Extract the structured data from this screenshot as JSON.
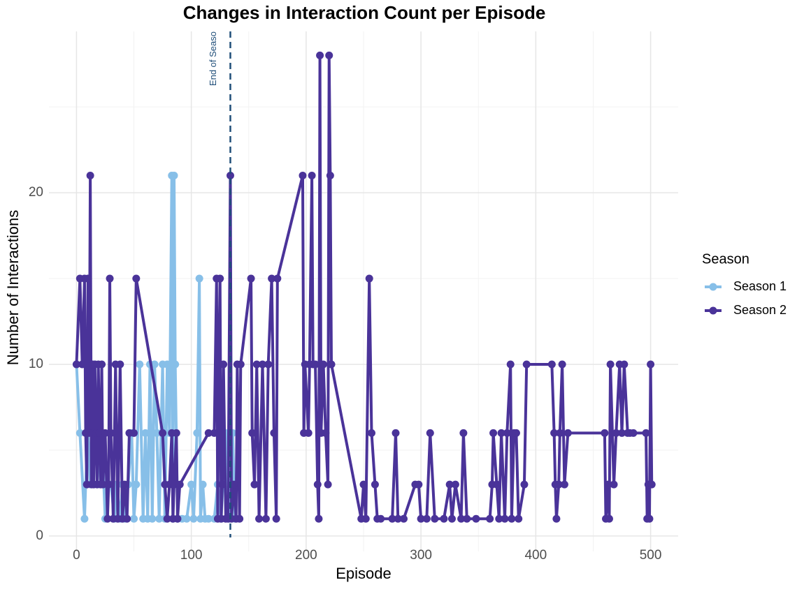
{
  "chart_data": {
    "type": "line",
    "title": "Changes in Interaction Count per Episode",
    "x_label": "Episode",
    "y_label": "Number of Interactions",
    "legend_title": "Season",
    "legend_position": "right",
    "grid": true,
    "xlim": [
      -24,
      524
    ],
    "ylim": [
      -0.9,
      29.4
    ],
    "xticks": [
      0,
      100,
      200,
      300,
      400,
      500
    ],
    "yticks": [
      0,
      10,
      20
    ],
    "xticks_minor": [
      50,
      150,
      250,
      350,
      450
    ],
    "yticks_minor": [
      5,
      15,
      25
    ],
    "vline": {
      "x": 134,
      "color": "#1f4e79",
      "label": "End of Seaso"
    },
    "series": [
      {
        "name": "Season 1",
        "color": "#87bfe8",
        "x": [
          0,
          3,
          7,
          8,
          10,
          12,
          14,
          16,
          18,
          20,
          22,
          25,
          27,
          30,
          33,
          35,
          38,
          40,
          42,
          45,
          48,
          50,
          52,
          55,
          58,
          60,
          62,
          64,
          66,
          68,
          70,
          72,
          75,
          77,
          79,
          81,
          83,
          84,
          85,
          86,
          88,
          92,
          96,
          100,
          102,
          105,
          107,
          108,
          110,
          112,
          115,
          120,
          123,
          126,
          130,
          133,
          136,
          138
        ],
        "values": [
          10,
          6,
          1,
          3,
          6,
          3,
          6,
          10,
          3,
          6,
          6,
          1,
          3,
          3,
          1,
          3,
          1,
          3,
          1,
          3,
          6,
          1,
          3,
          10,
          1,
          6,
          1,
          10,
          1,
          10,
          6,
          1,
          10,
          1,
          10,
          6,
          21,
          1,
          21,
          10,
          1,
          1,
          1,
          3,
          1,
          6,
          15,
          1,
          3,
          1,
          1,
          1,
          3,
          1,
          6,
          1,
          6,
          1
        ]
      },
      {
        "name": "Season 2",
        "color": "#4a3399",
        "x": [
          0,
          3,
          5,
          7,
          8,
          9,
          10,
          11,
          12,
          13,
          14,
          15,
          16,
          17,
          18,
          19,
          20,
          21,
          22,
          23,
          25,
          27,
          28,
          29,
          30,
          32,
          34,
          36,
          38,
          40,
          42,
          44,
          46,
          50,
          52,
          75,
          77,
          79,
          81,
          83,
          84,
          85,
          87,
          88,
          90,
          115,
          120,
          122,
          123,
          124,
          125,
          126,
          127,
          128,
          130,
          132,
          134,
          135,
          137,
          139,
          140,
          142,
          143,
          152,
          153,
          155,
          157,
          159,
          162,
          165,
          167,
          170,
          172,
          174,
          175,
          197,
          198,
          199,
          202,
          203,
          205,
          206,
          208,
          210,
          211,
          212,
          213,
          215,
          217,
          219,
          220,
          221,
          222,
          248,
          250,
          252,
          255,
          257,
          260,
          262,
          265,
          275,
          278,
          280,
          285,
          295,
          298,
          300,
          305,
          308,
          312,
          320,
          325,
          327,
          330,
          335,
          337,
          340,
          348,
          360,
          362,
          363,
          366,
          368,
          370,
          373,
          375,
          378,
          379,
          381,
          383,
          385,
          390,
          392,
          414,
          416,
          417,
          418,
          420,
          421,
          423,
          425,
          428,
          460,
          461,
          463,
          464,
          465,
          468,
          470,
          473,
          475,
          477,
          480,
          482,
          485,
          496,
          497,
          498,
          499,
          500,
          501
        ],
        "values": [
          10,
          15,
          10,
          15,
          6,
          3,
          15,
          6,
          21,
          3,
          10,
          3,
          10,
          6,
          3,
          10,
          6,
          3,
          10,
          3,
          6,
          1,
          3,
          15,
          6,
          1,
          10,
          1,
          10,
          1,
          3,
          1,
          6,
          6,
          15,
          6,
          3,
          1,
          3,
          6,
          1,
          3,
          6,
          1,
          3,
          6,
          6,
          15,
          1,
          10,
          15,
          1,
          3,
          10,
          1,
          1,
          21,
          1,
          3,
          1,
          10,
          1,
          10,
          15,
          6,
          3,
          10,
          1,
          10,
          1,
          10,
          15,
          6,
          1,
          15,
          21,
          6,
          10,
          6,
          10,
          21,
          10,
          10,
          3,
          1,
          28,
          6,
          10,
          6,
          3,
          28,
          21,
          10,
          1,
          3,
          1,
          15,
          6,
          3,
          1,
          1,
          1,
          6,
          1,
          1,
          3,
          3,
          1,
          1,
          6,
          1,
          1,
          3,
          1,
          3,
          1,
          6,
          1,
          1,
          1,
          3,
          6,
          3,
          1,
          6,
          1,
          6,
          10,
          1,
          6,
          6,
          1,
          3,
          10,
          10,
          6,
          3,
          1,
          3,
          6,
          10,
          3,
          6,
          6,
          1,
          3,
          1,
          10,
          3,
          6,
          10,
          6,
          10,
          6,
          6,
          6,
          6,
          1,
          3,
          1,
          10,
          3
        ]
      }
    ]
  }
}
